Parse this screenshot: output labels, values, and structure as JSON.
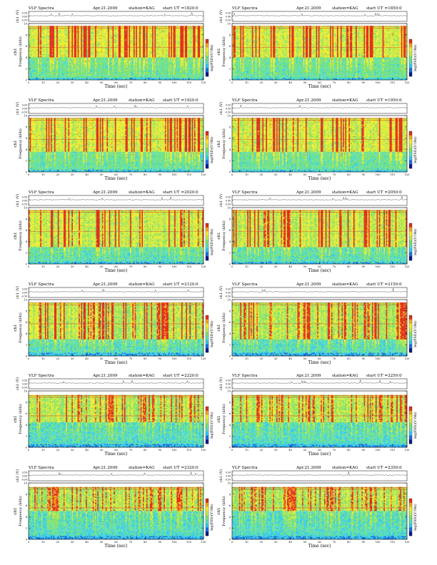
{
  "page": {
    "title_prefix": "VLF Spectra",
    "date": "Apr.21.2009",
    "station_label": "station=KAG",
    "start_label": "start  UT  ="
  },
  "chart_data": [
    {
      "type": "heatmap",
      "start_ut": "1820:0",
      "xlim": [
        0,
        120
      ],
      "ylim": [
        0,
        10
      ],
      "xlabel": "Time  (sec)",
      "ylabel": "Frequency  (kHz)",
      "channel_label": "ch1",
      "wave_label": "ch1 (V)",
      "wave_ticks": [
        "0.50",
        "0.00",
        "-0.50"
      ],
      "colorbar_label": "log(PSD)(V²/Hz)",
      "x_ticks": [
        0,
        10,
        20,
        30,
        40,
        50,
        60,
        70,
        80,
        90,
        100,
        110,
        120
      ],
      "y_ticks": [
        0,
        2,
        4,
        6,
        8,
        10
      ],
      "signal_top_khz": 9.6,
      "intensity": 0.85,
      "band_low_khz": 4.0
    },
    {
      "type": "heatmap",
      "start_ut": "1850:0",
      "xlim": [
        0,
        120
      ],
      "ylim": [
        0,
        10
      ],
      "xlabel": "Time  (sec)",
      "ylabel": "Frequency  (kHz)",
      "channel_label": "ch1",
      "wave_label": "ch1 (V)",
      "wave_ticks": [
        "0.50",
        "0.00",
        "-0.50"
      ],
      "colorbar_label": "log(PSD)(V²/Hz)",
      "x_ticks": [
        0,
        10,
        20,
        30,
        40,
        50,
        60,
        70,
        80,
        90,
        100,
        110,
        120
      ],
      "y_ticks": [
        0,
        2,
        4,
        6,
        8,
        10
      ],
      "signal_top_khz": 9.6,
      "intensity": 0.85,
      "band_low_khz": 4.0
    },
    {
      "type": "heatmap",
      "start_ut": "1920:0",
      "xlim": [
        0,
        120
      ],
      "ylim": [
        0,
        10
      ],
      "xlabel": "Time  (sec)",
      "ylabel": "Frequency  (kHz)",
      "channel_label": "ch1",
      "wave_label": "ch1 (V)",
      "wave_ticks": [
        "0.50",
        "0.00",
        "-0.50"
      ],
      "colorbar_label": "log(PSD)(V²/Hz)",
      "x_ticks": [
        0,
        10,
        20,
        30,
        40,
        50,
        60,
        70,
        80,
        90,
        100,
        110,
        120
      ],
      "y_ticks": [
        0,
        2,
        4,
        6,
        8,
        10
      ],
      "signal_top_khz": 9.6,
      "intensity": 0.8,
      "band_low_khz": 3.5
    },
    {
      "type": "heatmap",
      "start_ut": "1950:0",
      "xlim": [
        0,
        120
      ],
      "ylim": [
        0,
        10
      ],
      "xlabel": "Time  (sec)",
      "ylabel": "Frequency  (kHz)",
      "channel_label": "ch1",
      "wave_label": "ch1 (V)",
      "wave_ticks": [
        "0.50",
        "0.00",
        "-0.50"
      ],
      "colorbar_label": "log(PSD)(V²/Hz)",
      "x_ticks": [
        0,
        10,
        20,
        30,
        40,
        50,
        60,
        70,
        80,
        90,
        100,
        110,
        120
      ],
      "y_ticks": [
        0,
        2,
        4,
        6,
        8,
        10
      ],
      "signal_top_khz": 9.6,
      "intensity": 0.8,
      "band_low_khz": 3.5
    },
    {
      "type": "heatmap",
      "start_ut": "2020:0",
      "xlim": [
        0,
        120
      ],
      "ylim": [
        0,
        10
      ],
      "xlabel": "Time  (sec)",
      "ylabel": "Frequency  (kHz)",
      "channel_label": "ch1",
      "wave_label": "ch1 (V)",
      "wave_ticks": [
        "0.50",
        "0.00",
        "-0.50"
      ],
      "colorbar_label": "log(PSD)(V²/Hz)",
      "x_ticks": [
        0,
        10,
        20,
        30,
        40,
        50,
        60,
        70,
        80,
        90,
        100,
        110,
        120
      ],
      "y_ticks": [
        0,
        2,
        4,
        6,
        8,
        10
      ],
      "signal_top_khz": 9.6,
      "intensity": 0.65,
      "band_low_khz": 3.0
    },
    {
      "type": "heatmap",
      "start_ut": "2050:0",
      "xlim": [
        0,
        120
      ],
      "ylim": [
        0,
        10
      ],
      "xlabel": "Time  (sec)",
      "ylabel": "Frequency  (kHz)",
      "channel_label": "ch1",
      "wave_label": "ch1 (V)",
      "wave_ticks": [
        "0.50",
        "0.00",
        "-0.50"
      ],
      "colorbar_label": "log(PSD)(V²/Hz)",
      "x_ticks": [
        0,
        10,
        20,
        30,
        40,
        50,
        60,
        70,
        80,
        90,
        100,
        110,
        120
      ],
      "y_ticks": [
        0,
        2,
        4,
        6,
        8,
        10
      ],
      "signal_top_khz": 9.6,
      "intensity": 0.65,
      "band_low_khz": 3.0
    },
    {
      "type": "heatmap",
      "start_ut": "2120:0",
      "xlim": [
        0,
        120
      ],
      "ylim": [
        0,
        10
      ],
      "xlabel": "Time  (sec)",
      "ylabel": "Frequency  (kHz)",
      "channel_label": "ch1",
      "wave_label": "ch1 (V)",
      "wave_ticks": [
        "0.50",
        "0.00",
        "-0.50"
      ],
      "colorbar_label": "log(PSD)(V²/Hz)",
      "x_ticks": [
        0,
        10,
        20,
        30,
        40,
        50,
        60,
        70,
        80,
        90,
        100,
        110,
        120
      ],
      "y_ticks": [
        0,
        2,
        4,
        6,
        8,
        10
      ],
      "signal_top_khz": 9.5,
      "intensity": 0.55,
      "band_low_khz": 3.0
    },
    {
      "type": "heatmap",
      "start_ut": "2150:0",
      "xlim": [
        0,
        120
      ],
      "ylim": [
        0,
        10
      ],
      "xlabel": "Time  (sec)",
      "ylabel": "Frequency  (kHz)",
      "channel_label": "ch1",
      "wave_label": "ch1 (V)",
      "wave_ticks": [
        "0.50",
        "0.00",
        "-0.50"
      ],
      "colorbar_label": "log(PSD)(V²/Hz)",
      "x_ticks": [
        0,
        10,
        20,
        30,
        40,
        50,
        60,
        70,
        80,
        90,
        100,
        110,
        120
      ],
      "y_ticks": [
        0,
        2,
        4,
        6,
        8,
        10
      ],
      "signal_top_khz": 9.5,
      "intensity": 0.5,
      "band_low_khz": 3.0
    },
    {
      "type": "heatmap",
      "start_ut": "2220:0",
      "xlim": [
        0,
        120
      ],
      "ylim": [
        0,
        10
      ],
      "xlabel": "Time  (sec)",
      "ylabel": "Frequency  (kHz)",
      "channel_label": "ch1",
      "wave_label": "ch1 (V)",
      "wave_ticks": [
        "0.50",
        "0.00",
        "-0.50"
      ],
      "colorbar_label": "log(PSD)(V²/Hz)",
      "x_ticks": [
        0,
        10,
        20,
        30,
        40,
        50,
        60,
        70,
        80,
        90,
        100,
        110,
        120
      ],
      "y_ticks": [
        0,
        2,
        4,
        6,
        8,
        10
      ],
      "signal_top_khz": 9.3,
      "intensity": 0.45,
      "band_low_khz": 4.5
    },
    {
      "type": "heatmap",
      "start_ut": "2250:0",
      "xlim": [
        0,
        120
      ],
      "ylim": [
        0,
        10
      ],
      "xlabel": "Time  (sec)",
      "ylabel": "Frequency  (kHz)",
      "channel_label": "ch1",
      "wave_label": "ch1 (V)",
      "wave_ticks": [
        "0.50",
        "0.00",
        "-0.50"
      ],
      "colorbar_label": "log(PSD)(V²/Hz)",
      "x_ticks": [
        0,
        10,
        20,
        30,
        40,
        50,
        60,
        70,
        80,
        90,
        100,
        110,
        120
      ],
      "y_ticks": [
        0,
        2,
        4,
        6,
        8,
        10
      ],
      "signal_top_khz": 9.3,
      "intensity": 0.45,
      "band_low_khz": 4.5
    },
    {
      "type": "heatmap",
      "start_ut": "2320:0",
      "xlim": [
        0,
        120
      ],
      "ylim": [
        0,
        10
      ],
      "xlabel": "Time  (sec)",
      "ylabel": "Frequency  (kHz)",
      "channel_label": "ch1",
      "wave_label": "ch1 (V)",
      "wave_ticks": [
        "0.50",
        "0.00",
        "-0.50"
      ],
      "colorbar_label": "log(PSD)(V²/Hz)",
      "x_ticks": [
        0,
        10,
        20,
        30,
        40,
        50,
        60,
        70,
        80,
        90,
        100,
        110,
        120
      ],
      "y_ticks": [
        0,
        2,
        4,
        6,
        8,
        10
      ],
      "signal_top_khz": 9.3,
      "intensity": 0.4,
      "band_low_khz": 5.0
    },
    {
      "type": "heatmap",
      "start_ut": "2350:0",
      "xlim": [
        0,
        120
      ],
      "ylim": [
        0,
        10
      ],
      "xlabel": "Time  (sec)",
      "ylabel": "Frequency  (kHz)",
      "channel_label": "ch1",
      "wave_label": "ch1 (V)",
      "wave_ticks": [
        "0.50",
        "0.00",
        "-0.50"
      ],
      "colorbar_label": "log(PSD)(V²/Hz)",
      "x_ticks": [
        0,
        10,
        20,
        30,
        40,
        50,
        60,
        70,
        80,
        90,
        100,
        110,
        120
      ],
      "y_ticks": [
        0,
        2,
        4,
        6,
        8,
        10
      ],
      "signal_top_khz": 9.3,
      "intensity": 0.4,
      "band_low_khz": 5.0
    }
  ]
}
